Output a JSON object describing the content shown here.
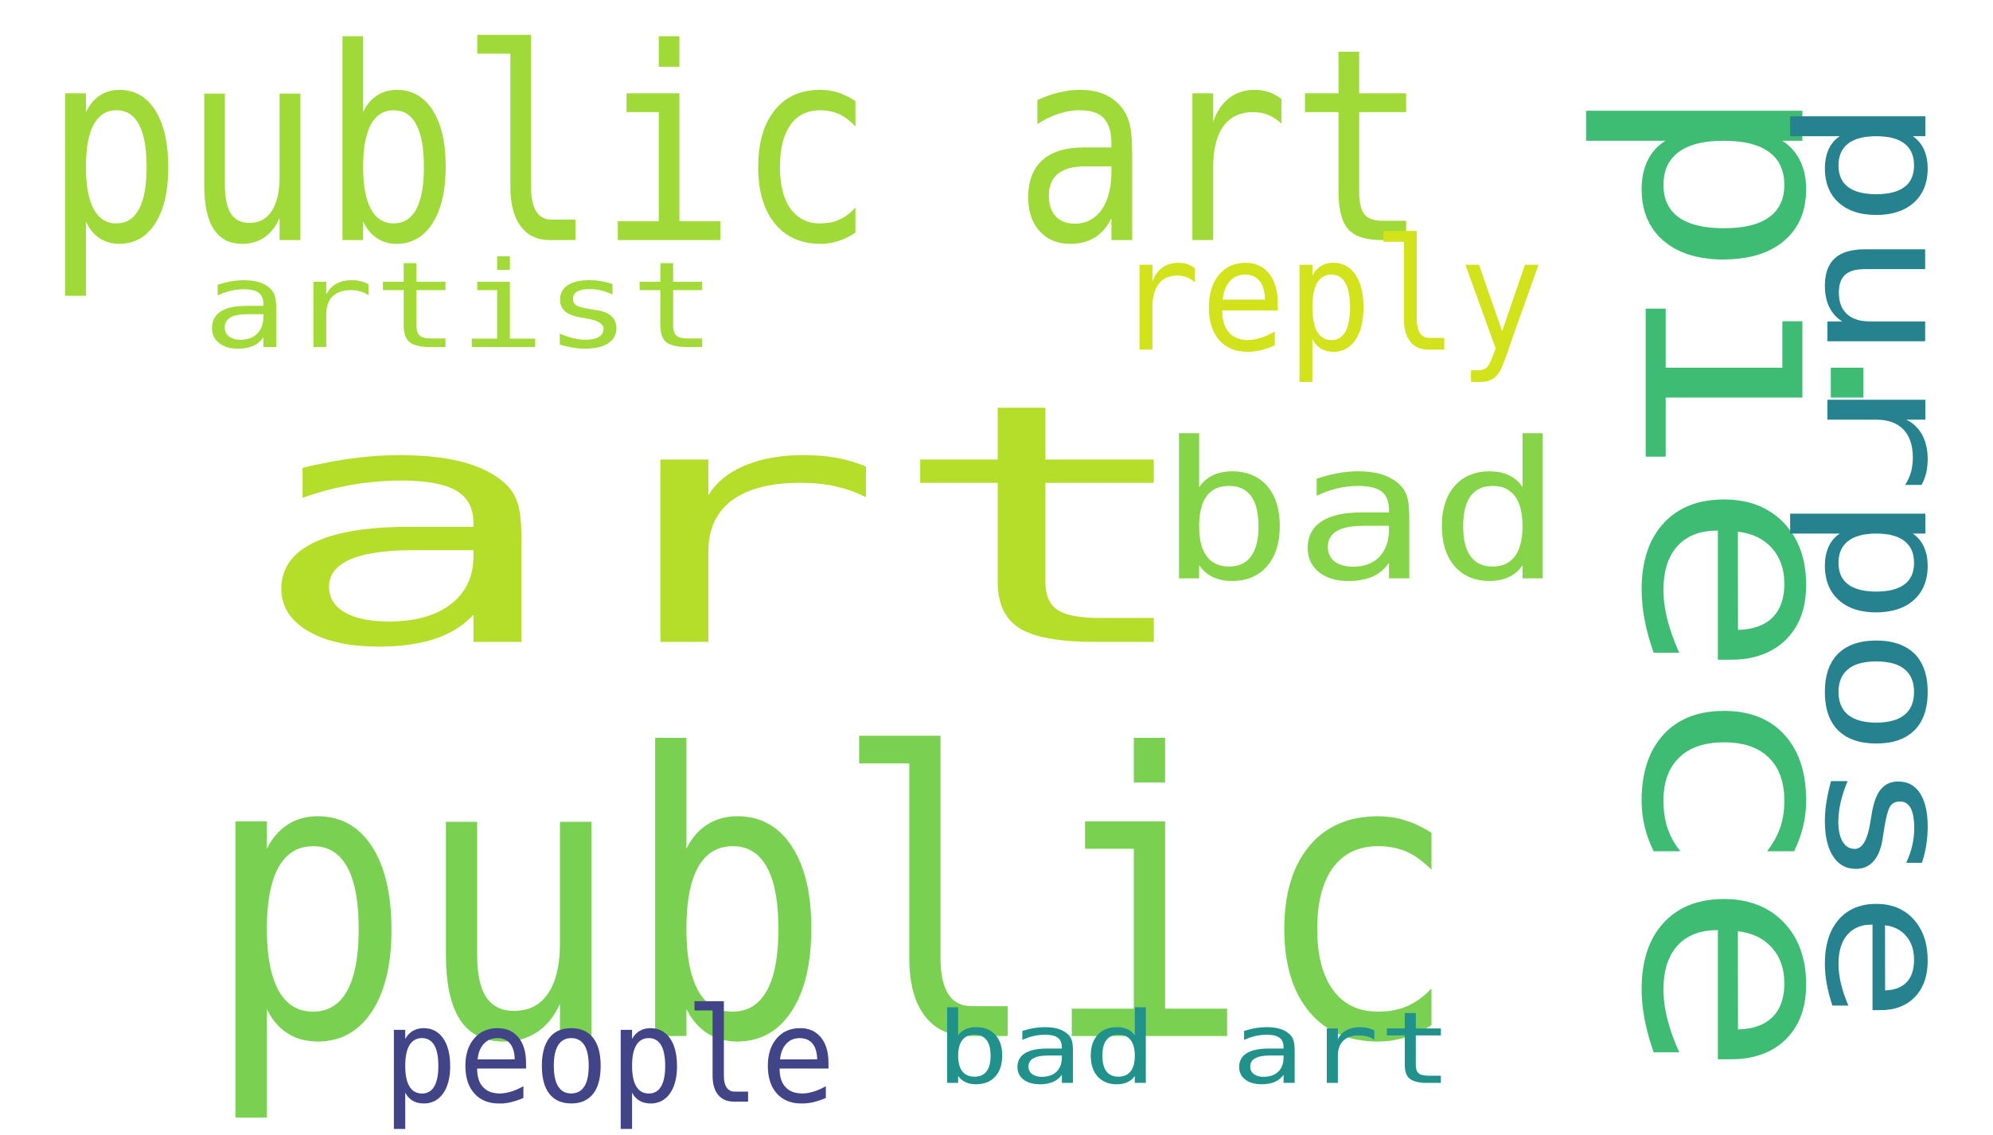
{
  "background": "#ffffff",
  "words": [
    {
      "text": "art",
      "color": "#b5de2b"
    },
    {
      "text": "public",
      "color": "#7ad151"
    },
    {
      "text": "public art",
      "color": "#a0da39"
    },
    {
      "text": "piece",
      "color": "#3fbc73"
    },
    {
      "text": "purpose",
      "color": "#26828e"
    },
    {
      "text": "bad",
      "color": "#86d549"
    },
    {
      "text": "artist",
      "color": "#a2da37"
    },
    {
      "text": "reply",
      "color": "#d2e21b"
    },
    {
      "text": "people",
      "color": "#414487"
    },
    {
      "text": "bad art",
      "color": "#21918c"
    }
  ]
}
